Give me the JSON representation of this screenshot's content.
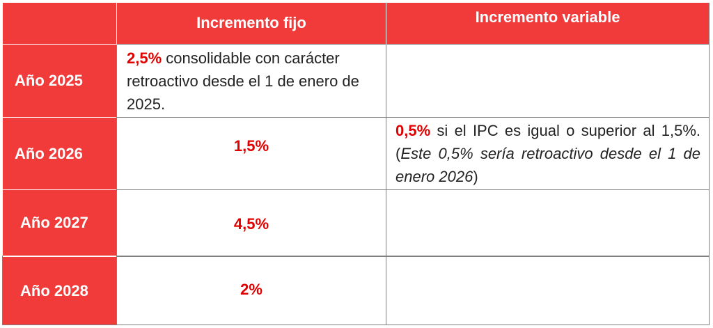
{
  "table": {
    "header": {
      "col_fixed": "Incremento fijo",
      "col_variable": "Incremento variable"
    },
    "rows": [
      {
        "year": "Año 2025",
        "fixed_highlight": "2,5%",
        "fixed_rest": " consolidable con carácter retroactivo desde el 1 de enero de 2025.",
        "variable_highlight": "",
        "variable_text": "",
        "variable_italic": "",
        "variable_end": ""
      },
      {
        "year": "Año 2026",
        "fixed_value": "1,5%",
        "variable_highlight": "0,5%",
        "variable_text": " si el IPC es igual o superior al 1,5%. (",
        "variable_italic": "Este 0,5% sería retroactivo desde el 1 de enero 2026",
        "variable_end": ")"
      },
      {
        "year": "Año 2027",
        "fixed_value": "4,5%"
      },
      {
        "year": "Año 2028",
        "fixed_value": "2%"
      }
    ]
  },
  "colors": {
    "header_red": "#f13a3a",
    "value_red": "#e00000",
    "border_gray": "#7f7f7f"
  }
}
